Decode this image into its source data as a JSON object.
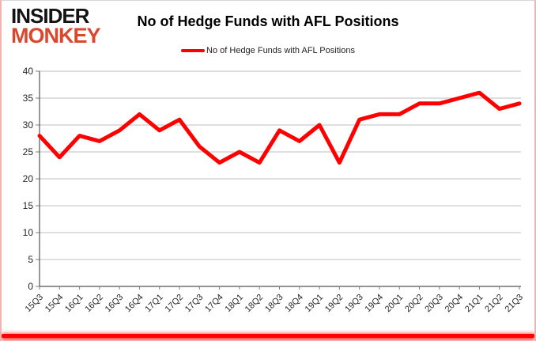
{
  "brand": {
    "line1": "INSIDER",
    "line2": "MONKEY",
    "accent_color": "#d9472e"
  },
  "header": {
    "title": "No of Hedge Funds with AFL Positions"
  },
  "legend": {
    "label": "No of Hedge Funds with AFL Positions",
    "marker_color": "#ff0000"
  },
  "colors": {
    "line": "#ff0000",
    "grid": "#bfbfbf",
    "axis": "#555555",
    "tick": "#7f7f7f",
    "label_text": "#262626",
    "bottom_bar": "#ff0000"
  },
  "chart_data": {
    "type": "line",
    "title": "No of Hedge Funds with AFL Positions",
    "categories": [
      "15Q3",
      "15Q4",
      "16Q1",
      "16Q2",
      "16Q3",
      "16Q4",
      "17Q1",
      "17Q2",
      "17Q3",
      "17Q4",
      "18Q1",
      "18Q2",
      "18Q3",
      "18Q4",
      "19Q1",
      "19Q2",
      "19Q3",
      "19Q4",
      "20Q1",
      "20Q2",
      "20Q3",
      "20Q4",
      "21Q1",
      "21Q2",
      "21Q3"
    ],
    "series": [
      {
        "name": "No of Hedge Funds with AFL Positions",
        "color": "#ff0000",
        "values": [
          28,
          24,
          28,
          27,
          29,
          32,
          29,
          31,
          26,
          23,
          25,
          23,
          29,
          27,
          30,
          23,
          31,
          32,
          32,
          34,
          34,
          35,
          36,
          33,
          34
        ]
      }
    ],
    "xlabel": "",
    "ylabel": "",
    "ylim": [
      0,
      40
    ],
    "yticks": [
      0,
      5,
      10,
      15,
      20,
      25,
      30,
      35,
      40
    ],
    "grid": true,
    "legend_position": "top-center"
  }
}
